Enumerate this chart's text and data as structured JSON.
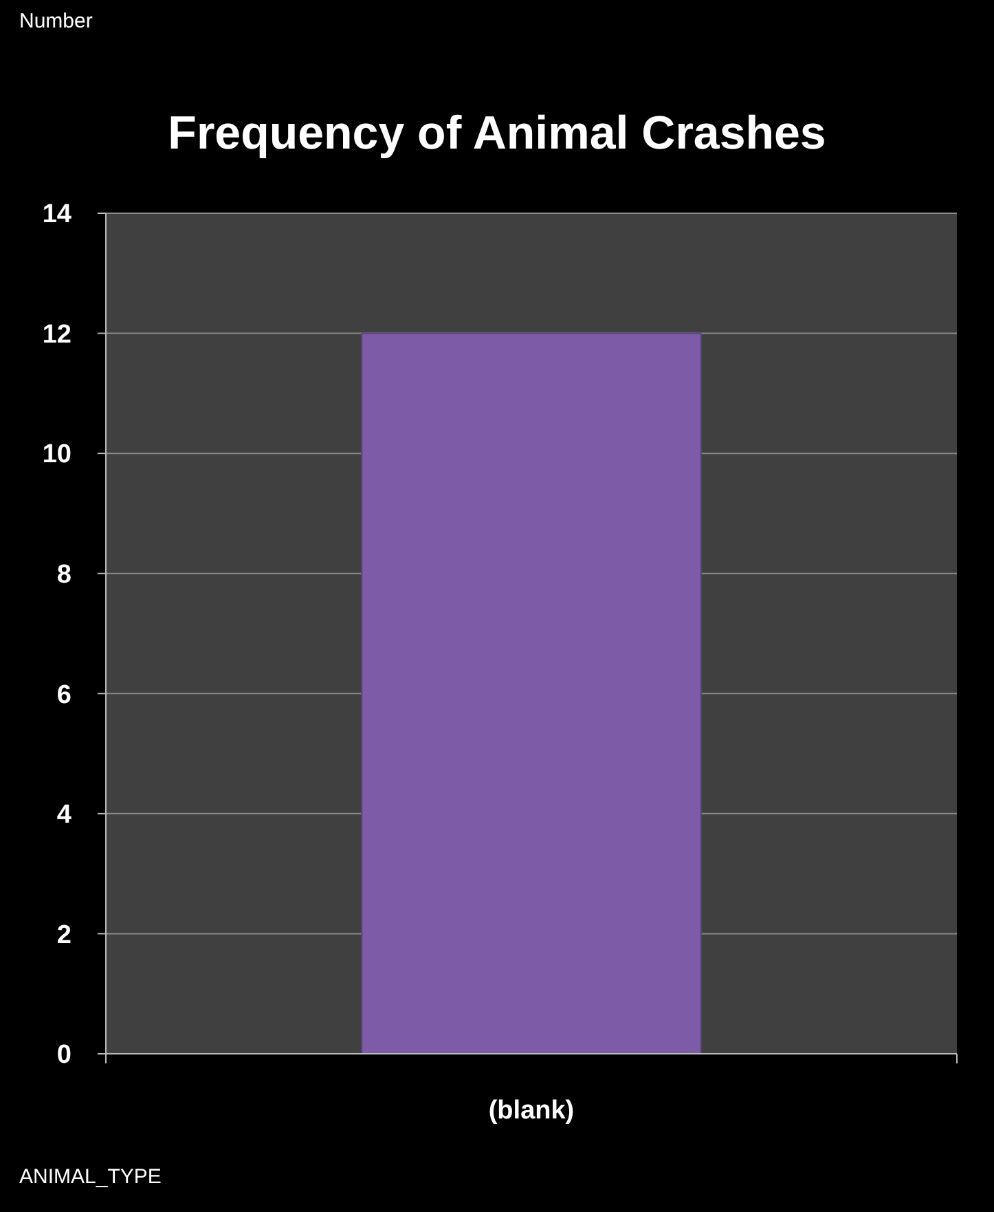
{
  "chart_data": {
    "type": "bar",
    "title": "Frequency of Animal Crashes",
    "annotations": [
      "Number"
    ],
    "xlabel": "ANIMAL_TYPE",
    "categories": [
      "(blank)"
    ],
    "values": [
      12
    ],
    "color": "#7d5ba6",
    "ylim": [
      0,
      14
    ],
    "yticks": [
      0,
      2,
      4,
      6,
      8,
      10,
      12,
      14
    ],
    "grid": "y"
  }
}
